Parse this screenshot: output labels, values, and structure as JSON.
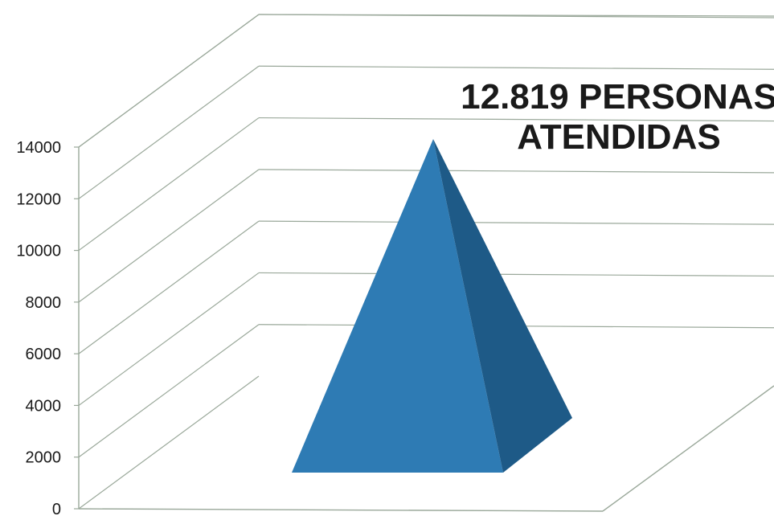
{
  "chart_data": {
    "type": "bar",
    "shape": "pyramid-3d",
    "categories": [
      ""
    ],
    "values": [
      12819
    ],
    "ylim": [
      0,
      14000
    ],
    "yticks": [
      0,
      2000,
      4000,
      6000,
      8000,
      10000,
      12000,
      14000
    ],
    "grid": true,
    "annotation": {
      "line1": "12.819 PERSONAS",
      "line2": "ATENDIDAS"
    },
    "colors": {
      "front": "#2e7bb4",
      "side": "#1e5a87",
      "grid": "#9aa89a"
    }
  }
}
